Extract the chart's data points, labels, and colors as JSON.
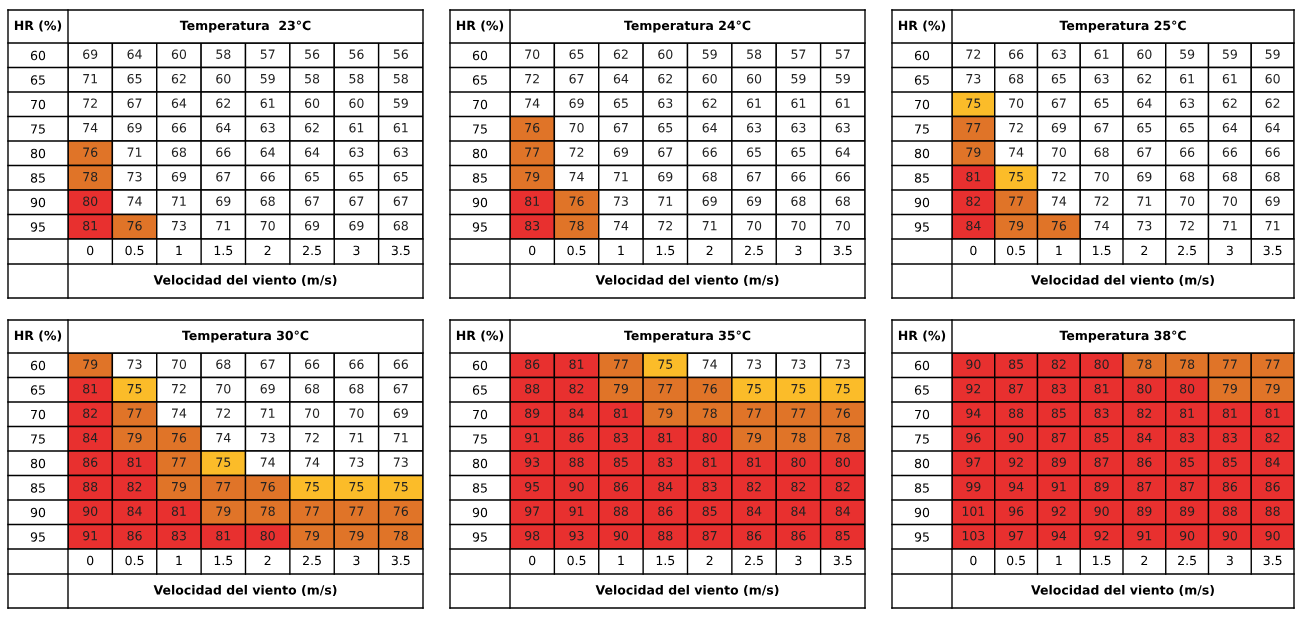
{
  "chart_data": [
    {
      "type": "heatmap",
      "title": "Temperatura  23°C",
      "ylabel": "HR (%)",
      "xlabel": "Velocidad del viento (m/s)",
      "data_labels": true,
      "categories": [
        "0",
        "0.5",
        "1",
        "1.5",
        "2",
        "2.5",
        "3",
        "3.5"
      ],
      "y_categories": [
        "60",
        "65",
        "70",
        "75",
        "80",
        "85",
        "90",
        "95"
      ],
      "cells": [
        [
          69,
          64,
          60,
          58,
          57,
          56,
          56,
          56
        ],
        [
          71,
          65,
          62,
          60,
          59,
          58,
          58,
          58
        ],
        [
          72,
          67,
          64,
          62,
          61,
          60,
          60,
          59
        ],
        [
          74,
          69,
          66,
          64,
          63,
          62,
          61,
          61
        ],
        [
          76,
          71,
          68,
          66,
          64,
          64,
          63,
          63
        ],
        [
          78,
          73,
          69,
          67,
          66,
          65,
          65,
          65
        ],
        [
          80,
          74,
          71,
          69,
          68,
          67,
          67,
          67
        ],
        [
          81,
          76,
          73,
          71,
          70,
          69,
          69,
          68
        ]
      ],
      "colors": [
        [
          "#ffffff",
          "#ffffff",
          "#ffffff",
          "#ffffff",
          "#ffffff",
          "#ffffff",
          "#ffffff",
          "#ffffff"
        ],
        [
          "#ffffff",
          "#ffffff",
          "#ffffff",
          "#ffffff",
          "#ffffff",
          "#ffffff",
          "#ffffff",
          "#ffffff"
        ],
        [
          "#ffffff",
          "#ffffff",
          "#ffffff",
          "#ffffff",
          "#ffffff",
          "#ffffff",
          "#ffffff",
          "#ffffff"
        ],
        [
          "#ffffff",
          "#ffffff",
          "#ffffff",
          "#ffffff",
          "#ffffff",
          "#ffffff",
          "#ffffff",
          "#ffffff"
        ],
        [
          "#e07428",
          "#ffffff",
          "#ffffff",
          "#ffffff",
          "#ffffff",
          "#ffffff",
          "#ffffff",
          "#ffffff"
        ],
        [
          "#e07428",
          "#ffffff",
          "#ffffff",
          "#ffffff",
          "#ffffff",
          "#ffffff",
          "#ffffff",
          "#ffffff"
        ],
        [
          "#e8302f",
          "#ffffff",
          "#ffffff",
          "#ffffff",
          "#ffffff",
          "#ffffff",
          "#ffffff",
          "#ffffff"
        ],
        [
          "#e8302f",
          "#e07428",
          "#ffffff",
          "#ffffff",
          "#ffffff",
          "#ffffff",
          "#ffffff",
          "#ffffff"
        ]
      ]
    },
    {
      "type": "heatmap",
      "title": "Temperatura 24°C",
      "ylabel": "HR (%)",
      "xlabel": "Velocidad del viento (m/s)",
      "data_labels": true,
      "categories": [
        "0",
        "0.5",
        "1",
        "1.5",
        "2",
        "2.5",
        "3",
        "3.5"
      ],
      "y_categories": [
        "60",
        "65",
        "70",
        "75",
        "80",
        "85",
        "90",
        "95"
      ],
      "cells": [
        [
          70,
          65,
          62,
          60,
          59,
          58,
          57,
          57
        ],
        [
          72,
          67,
          64,
          62,
          60,
          60,
          59,
          59
        ],
        [
          74,
          69,
          65,
          63,
          62,
          61,
          61,
          61
        ],
        [
          76,
          70,
          67,
          65,
          64,
          63,
          63,
          63
        ],
        [
          77,
          72,
          69,
          67,
          66,
          65,
          65,
          64
        ],
        [
          79,
          74,
          71,
          69,
          68,
          67,
          66,
          66
        ],
        [
          81,
          76,
          73,
          71,
          69,
          69,
          68,
          68
        ],
        [
          83,
          78,
          74,
          72,
          71,
          70,
          70,
          70
        ]
      ],
      "colors": [
        [
          "#ffffff",
          "#ffffff",
          "#ffffff",
          "#ffffff",
          "#ffffff",
          "#ffffff",
          "#ffffff",
          "#ffffff"
        ],
        [
          "#ffffff",
          "#ffffff",
          "#ffffff",
          "#ffffff",
          "#ffffff",
          "#ffffff",
          "#ffffff",
          "#ffffff"
        ],
        [
          "#ffffff",
          "#ffffff",
          "#ffffff",
          "#ffffff",
          "#ffffff",
          "#ffffff",
          "#ffffff",
          "#ffffff"
        ],
        [
          "#e07428",
          "#ffffff",
          "#ffffff",
          "#ffffff",
          "#ffffff",
          "#ffffff",
          "#ffffff",
          "#ffffff"
        ],
        [
          "#e07428",
          "#ffffff",
          "#ffffff",
          "#ffffff",
          "#ffffff",
          "#ffffff",
          "#ffffff",
          "#ffffff"
        ],
        [
          "#e07428",
          "#ffffff",
          "#ffffff",
          "#ffffff",
          "#ffffff",
          "#ffffff",
          "#ffffff",
          "#ffffff"
        ],
        [
          "#e8302f",
          "#e07428",
          "#ffffff",
          "#ffffff",
          "#ffffff",
          "#ffffff",
          "#ffffff",
          "#ffffff"
        ],
        [
          "#e8302f",
          "#e07428",
          "#ffffff",
          "#ffffff",
          "#ffffff",
          "#ffffff",
          "#ffffff",
          "#ffffff"
        ]
      ]
    },
    {
      "type": "heatmap",
      "title": "Temperatura 25°C",
      "ylabel": "HR (%)",
      "xlabel": "Velocidad del viento (m/s)",
      "data_labels": true,
      "categories": [
        "0",
        "0.5",
        "1",
        "1.5",
        "2",
        "2.5",
        "3",
        "3.5"
      ],
      "y_categories": [
        "60",
        "65",
        "70",
        "75",
        "80",
        "85",
        "90",
        "95"
      ],
      "cells": [
        [
          72,
          66,
          63,
          61,
          60,
          59,
          59,
          59
        ],
        [
          73,
          68,
          65,
          63,
          62,
          61,
          61,
          60
        ],
        [
          75,
          70,
          67,
          65,
          64,
          63,
          62,
          62
        ],
        [
          77,
          72,
          69,
          67,
          65,
          65,
          64,
          64
        ],
        [
          79,
          74,
          70,
          68,
          67,
          66,
          66,
          66
        ],
        [
          81,
          75,
          72,
          70,
          69,
          68,
          68,
          68
        ],
        [
          82,
          77,
          74,
          72,
          71,
          70,
          70,
          69
        ],
        [
          84,
          79,
          76,
          74,
          73,
          72,
          71,
          71
        ]
      ],
      "colors": [
        [
          "#ffffff",
          "#ffffff",
          "#ffffff",
          "#ffffff",
          "#ffffff",
          "#ffffff",
          "#ffffff",
          "#ffffff"
        ],
        [
          "#ffffff",
          "#ffffff",
          "#ffffff",
          "#ffffff",
          "#ffffff",
          "#ffffff",
          "#ffffff",
          "#ffffff"
        ],
        [
          "#fbbc29",
          "#ffffff",
          "#ffffff",
          "#ffffff",
          "#ffffff",
          "#ffffff",
          "#ffffff",
          "#ffffff"
        ],
        [
          "#e07428",
          "#ffffff",
          "#ffffff",
          "#ffffff",
          "#ffffff",
          "#ffffff",
          "#ffffff",
          "#ffffff"
        ],
        [
          "#e07428",
          "#ffffff",
          "#ffffff",
          "#ffffff",
          "#ffffff",
          "#ffffff",
          "#ffffff",
          "#ffffff"
        ],
        [
          "#e8302f",
          "#fbbc29",
          "#ffffff",
          "#ffffff",
          "#ffffff",
          "#ffffff",
          "#ffffff",
          "#ffffff"
        ],
        [
          "#e8302f",
          "#e07428",
          "#ffffff",
          "#ffffff",
          "#ffffff",
          "#ffffff",
          "#ffffff",
          "#ffffff"
        ],
        [
          "#e8302f",
          "#e07428",
          "#e07428",
          "#ffffff",
          "#ffffff",
          "#ffffff",
          "#ffffff",
          "#ffffff"
        ]
      ]
    },
    {
      "type": "heatmap",
      "title": "Temperatura 30°C",
      "ylabel": "HR (%)",
      "xlabel": "Velocidad del viento (m/s)",
      "data_labels": true,
      "categories": [
        "0",
        "0.5",
        "1",
        "1.5",
        "2",
        "2.5",
        "3",
        "3.5"
      ],
      "y_categories": [
        "60",
        "65",
        "70",
        "75",
        "80",
        "85",
        "90",
        "95"
      ],
      "cells": [
        [
          79,
          73,
          70,
          68,
          67,
          66,
          66,
          66
        ],
        [
          81,
          75,
          72,
          70,
          69,
          68,
          68,
          67
        ],
        [
          82,
          77,
          74,
          72,
          71,
          70,
          70,
          69
        ],
        [
          84,
          79,
          76,
          74,
          73,
          72,
          71,
          71
        ],
        [
          86,
          81,
          77,
          75,
          74,
          74,
          73,
          73
        ],
        [
          88,
          82,
          79,
          77,
          76,
          75,
          75,
          75
        ],
        [
          90,
          84,
          81,
          79,
          78,
          77,
          77,
          76
        ],
        [
          91,
          86,
          83,
          81,
          80,
          79,
          79,
          78
        ]
      ],
      "colors": [
        [
          "#e07428",
          "#ffffff",
          "#ffffff",
          "#ffffff",
          "#ffffff",
          "#ffffff",
          "#ffffff",
          "#ffffff"
        ],
        [
          "#e8302f",
          "#fbbc29",
          "#ffffff",
          "#ffffff",
          "#ffffff",
          "#ffffff",
          "#ffffff",
          "#ffffff"
        ],
        [
          "#e8302f",
          "#e07428",
          "#ffffff",
          "#ffffff",
          "#ffffff",
          "#ffffff",
          "#ffffff",
          "#ffffff"
        ],
        [
          "#e8302f",
          "#e07428",
          "#e07428",
          "#ffffff",
          "#ffffff",
          "#ffffff",
          "#ffffff",
          "#ffffff"
        ],
        [
          "#e8302f",
          "#e8302f",
          "#e07428",
          "#fbbc29",
          "#ffffff",
          "#ffffff",
          "#ffffff",
          "#ffffff"
        ],
        [
          "#e8302f",
          "#e8302f",
          "#e07428",
          "#e07428",
          "#e07428",
          "#fbbc29",
          "#fbbc29",
          "#fbbc29"
        ],
        [
          "#e8302f",
          "#e8302f",
          "#e8302f",
          "#e07428",
          "#e07428",
          "#e07428",
          "#e07428",
          "#e07428"
        ],
        [
          "#e8302f",
          "#e8302f",
          "#e8302f",
          "#e8302f",
          "#e8302f",
          "#e07428",
          "#e07428",
          "#e07428"
        ]
      ]
    },
    {
      "type": "heatmap",
      "title": "Temperatura 35°C",
      "ylabel": "HR (%)",
      "xlabel": "Velocidad del viento (m/s)",
      "data_labels": true,
      "categories": [
        "0",
        "0.5",
        "1",
        "1.5",
        "2",
        "2.5",
        "3",
        "3.5"
      ],
      "y_categories": [
        "60",
        "65",
        "70",
        "75",
        "80",
        "85",
        "90",
        "95"
      ],
      "cells": [
        [
          86,
          81,
          77,
          75,
          74,
          73,
          73,
          73
        ],
        [
          88,
          82,
          79,
          77,
          76,
          75,
          75,
          75
        ],
        [
          89,
          84,
          81,
          79,
          78,
          77,
          77,
          76
        ],
        [
          91,
          86,
          83,
          81,
          80,
          79,
          78,
          78
        ],
        [
          93,
          88,
          85,
          83,
          81,
          81,
          80,
          80
        ],
        [
          95,
          90,
          86,
          84,
          83,
          82,
          82,
          82
        ],
        [
          97,
          91,
          88,
          86,
          85,
          84,
          84,
          84
        ],
        [
          98,
          93,
          90,
          88,
          87,
          86,
          86,
          85
        ]
      ],
      "colors": [
        [
          "#e8302f",
          "#e8302f",
          "#e07428",
          "#fbbc29",
          "#ffffff",
          "#ffffff",
          "#ffffff",
          "#ffffff"
        ],
        [
          "#e8302f",
          "#e8302f",
          "#e07428",
          "#e07428",
          "#e07428",
          "#fbbc29",
          "#fbbc29",
          "#fbbc29"
        ],
        [
          "#e8302f",
          "#e8302f",
          "#e8302f",
          "#e07428",
          "#e07428",
          "#e07428",
          "#e07428",
          "#e07428"
        ],
        [
          "#e8302f",
          "#e8302f",
          "#e8302f",
          "#e8302f",
          "#e8302f",
          "#e07428",
          "#e07428",
          "#e07428"
        ],
        [
          "#e8302f",
          "#e8302f",
          "#e8302f",
          "#e8302f",
          "#e8302f",
          "#e8302f",
          "#e8302f",
          "#e8302f"
        ],
        [
          "#e8302f",
          "#e8302f",
          "#e8302f",
          "#e8302f",
          "#e8302f",
          "#e8302f",
          "#e8302f",
          "#e8302f"
        ],
        [
          "#e8302f",
          "#e8302f",
          "#e8302f",
          "#e8302f",
          "#e8302f",
          "#e8302f",
          "#e8302f",
          "#e8302f"
        ],
        [
          "#e8302f",
          "#e8302f",
          "#e8302f",
          "#e8302f",
          "#e8302f",
          "#e8302f",
          "#e8302f",
          "#e8302f"
        ]
      ]
    },
    {
      "type": "heatmap",
      "title": "Temperatura 38°C",
      "ylabel": "HR (%)",
      "xlabel": "Velocidad del viento (m/s)",
      "data_labels": true,
      "categories": [
        "0",
        "0.5",
        "1",
        "1.5",
        "2",
        "2.5",
        "3",
        "3.5"
      ],
      "y_categories": [
        "60",
        "65",
        "70",
        "75",
        "80",
        "85",
        "90",
        "95"
      ],
      "cells": [
        [
          90,
          85,
          82,
          80,
          78,
          78,
          77,
          77
        ],
        [
          92,
          87,
          83,
          81,
          80,
          80,
          79,
          79
        ],
        [
          94,
          88,
          85,
          83,
          82,
          81,
          81,
          81
        ],
        [
          96,
          90,
          87,
          85,
          84,
          83,
          83,
          82
        ],
        [
          97,
          92,
          89,
          87,
          86,
          85,
          85,
          84
        ],
        [
          99,
          94,
          91,
          89,
          87,
          87,
          86,
          86
        ],
        [
          101,
          96,
          92,
          90,
          89,
          89,
          88,
          88
        ],
        [
          103,
          97,
          94,
          92,
          91,
          90,
          90,
          90
        ]
      ],
      "colors": [
        [
          "#e8302f",
          "#e8302f",
          "#e8302f",
          "#e8302f",
          "#e07428",
          "#e07428",
          "#e07428",
          "#e07428"
        ],
        [
          "#e8302f",
          "#e8302f",
          "#e8302f",
          "#e8302f",
          "#e8302f",
          "#e8302f",
          "#e07428",
          "#e07428"
        ],
        [
          "#e8302f",
          "#e8302f",
          "#e8302f",
          "#e8302f",
          "#e8302f",
          "#e8302f",
          "#e8302f",
          "#e8302f"
        ],
        [
          "#e8302f",
          "#e8302f",
          "#e8302f",
          "#e8302f",
          "#e8302f",
          "#e8302f",
          "#e8302f",
          "#e8302f"
        ],
        [
          "#e8302f",
          "#e8302f",
          "#e8302f",
          "#e8302f",
          "#e8302f",
          "#e8302f",
          "#e8302f",
          "#e8302f"
        ],
        [
          "#e8302f",
          "#e8302f",
          "#e8302f",
          "#e8302f",
          "#e8302f",
          "#e8302f",
          "#e8302f",
          "#e8302f"
        ],
        [
          "#e8302f",
          "#e8302f",
          "#e8302f",
          "#e8302f",
          "#e8302f",
          "#e8302f",
          "#e8302f",
          "#e8302f"
        ],
        [
          "#e8302f",
          "#e8302f",
          "#e8302f",
          "#e8302f",
          "#e8302f",
          "#e8302f",
          "#e8302f",
          "#e8302f"
        ]
      ]
    }
  ]
}
